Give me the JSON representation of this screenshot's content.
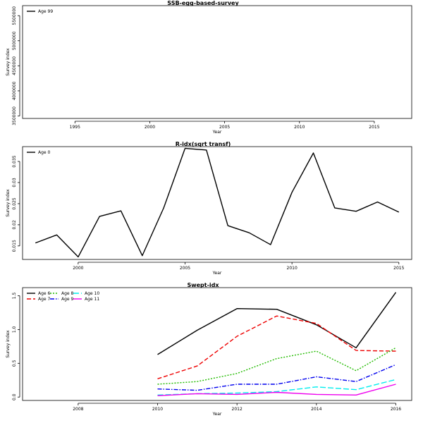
{
  "chart_data": [
    {
      "type": "line",
      "title": "SSB-egg-based-survey",
      "xlabel": "Year",
      "ylabel": "Survey index",
      "xlim": [
        1991.5,
        2017.5
      ],
      "ylim": [
        3450000,
        5700000
      ],
      "xticks": [
        1995,
        2000,
        2005,
        2010,
        2015
      ],
      "yticks": [
        3500000,
        4000000,
        4500000,
        5000000,
        5500000
      ],
      "legend_position": "top-left",
      "series": [
        {
          "name": "Age 99",
          "color": "#000000",
          "dash": "",
          "x": [],
          "y": []
        }
      ]
    },
    {
      "type": "line",
      "title": "R-idx(sqrt transf)",
      "xlabel": "Year",
      "ylabel": "Survey index",
      "xlim": [
        1997.4,
        2015.6
      ],
      "ylim": [
        0.0118,
        0.0385
      ],
      "xticks": [
        2000,
        2005,
        2010,
        2015
      ],
      "yticks": [
        0.015,
        0.02,
        0.025,
        0.03,
        0.035
      ],
      "legend_position": "top-left",
      "series": [
        {
          "name": "Age 0",
          "color": "#000000",
          "dash": "",
          "x": [
            1998,
            1999,
            2000,
            2001,
            2002,
            2003,
            2004,
            2005,
            2006,
            2007,
            2008,
            2009,
            2010,
            2011,
            2012,
            2013,
            2014,
            2015
          ],
          "y": [
            0.0157,
            0.0176,
            0.0124,
            0.022,
            0.0233,
            0.0127,
            0.024,
            0.0381,
            0.0377,
            0.0198,
            0.0181,
            0.0153,
            0.0277,
            0.037,
            0.024,
            0.0232,
            0.0254,
            0.023
          ]
        }
      ]
    },
    {
      "type": "line",
      "title": "Swept-idx",
      "xlabel": "Year",
      "ylabel": "Survey index",
      "xlim": [
        2006.6,
        2016.4
      ],
      "ylim": [
        -0.05,
        1.62
      ],
      "xticks": [
        2008,
        2010,
        2012,
        2014,
        2016
      ],
      "yticks": [
        0.0,
        0.5,
        1.0,
        1.5
      ],
      "legend_position": "top-left",
      "series": [
        {
          "name": "Age 6",
          "color": "#000000",
          "dash": "",
          "x": [
            2010,
            2011,
            2012,
            2013,
            2014,
            2015,
            2016
          ],
          "y": [
            0.63,
            0.99,
            1.31,
            1.3,
            1.07,
            0.73,
            1.55
          ]
        },
        {
          "name": "Age 7",
          "color": "#ee0000",
          "dash": "6,3",
          "x": [
            2010,
            2011,
            2012,
            2013,
            2014,
            2015,
            2016
          ],
          "y": [
            0.27,
            0.46,
            0.9,
            1.2,
            1.09,
            0.69,
            0.68
          ]
        },
        {
          "name": "Age 8",
          "color": "#22bb00",
          "dash": "2,2",
          "x": [
            2010,
            2011,
            2012,
            2013,
            2014,
            2015,
            2016
          ],
          "y": [
            0.19,
            0.23,
            0.35,
            0.57,
            0.68,
            0.39,
            0.73
          ]
        },
        {
          "name": "Age 9",
          "color": "#0000ee",
          "dash": "6,2,1.5,2",
          "x": [
            2010,
            2011,
            2012,
            2013,
            2014,
            2015,
            2016
          ],
          "y": [
            0.12,
            0.1,
            0.19,
            0.19,
            0.3,
            0.23,
            0.48
          ]
        },
        {
          "name": "Age 10",
          "color": "#00eeee",
          "dash": "8,3",
          "x": [
            2010,
            2011,
            2012,
            2013,
            2014,
            2015,
            2016
          ],
          "y": [
            0.03,
            0.05,
            0.06,
            0.08,
            0.15,
            0.11,
            0.26
          ]
        },
        {
          "name": "Age 11",
          "color": "#ee00ee",
          "dash": "",
          "x": [
            2010,
            2011,
            2012,
            2013,
            2014,
            2015,
            2016
          ],
          "y": [
            0.02,
            0.05,
            0.04,
            0.07,
            0.04,
            0.03,
            0.19
          ]
        }
      ]
    }
  ]
}
